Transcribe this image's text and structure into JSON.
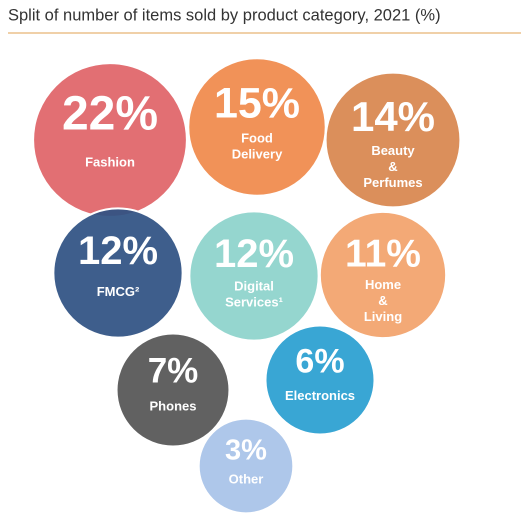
{
  "chart_data": {
    "type": "bubble",
    "title": "Split of number of items sold by product category, 2021 (%)",
    "categories": [
      "Fashion",
      "Food Delivery",
      "Beauty & Perfumes",
      "FMCG²",
      "Digital Services¹",
      "Home & Living",
      "Phones",
      "Electronics",
      "Other"
    ],
    "values": [
      22,
      15,
      14,
      12,
      12,
      11,
      7,
      6,
      3
    ],
    "value_labels": [
      "22%",
      "15%",
      "14%",
      "12%",
      "12%",
      "11%",
      "7%",
      "6%",
      "3%"
    ],
    "colors": [
      "#e06468",
      "#f08a4b",
      "#d8874f",
      "#2f5283",
      "#8dd3cb",
      "#f2a26c",
      "#555555",
      "#2a9fd1",
      "#a8c3e8"
    ]
  }
}
